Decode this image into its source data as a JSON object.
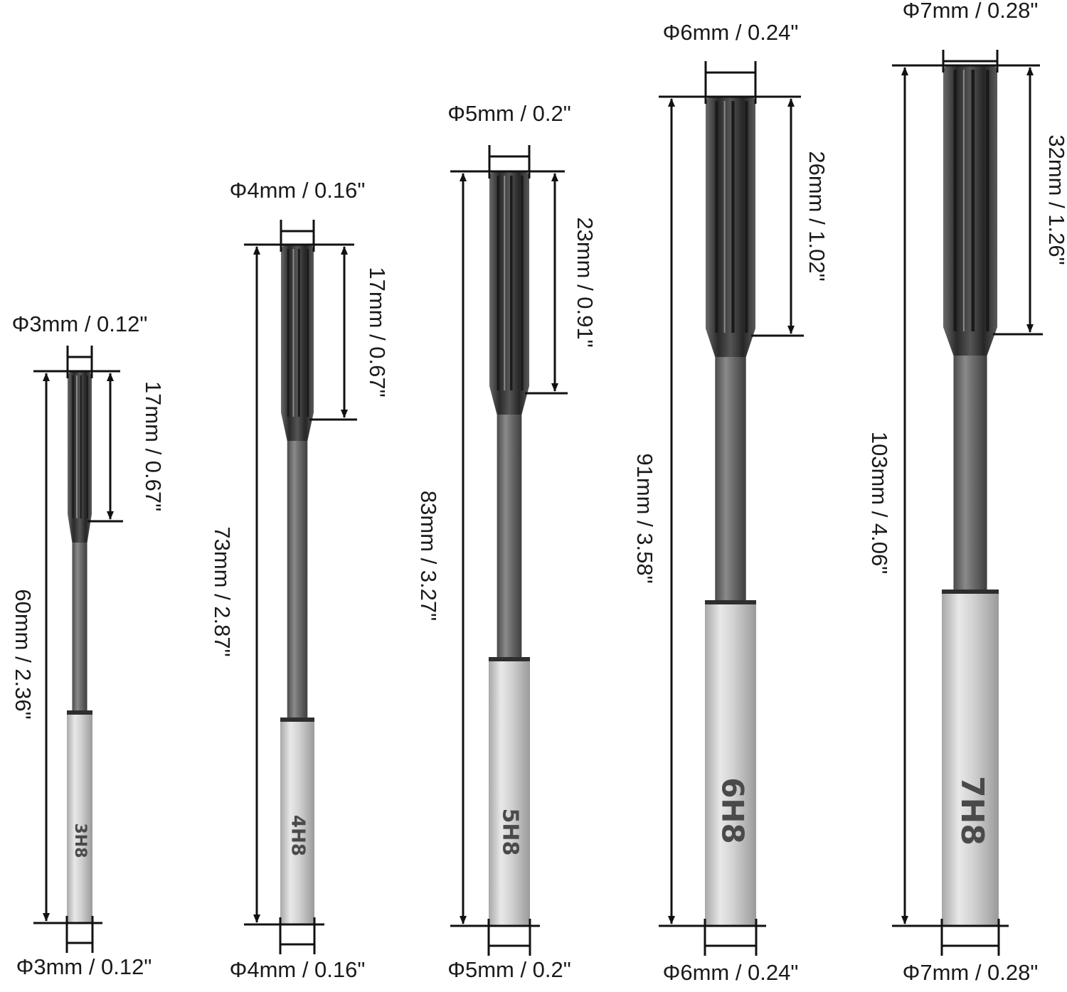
{
  "reamers": [
    {
      "top_diameter": "Φ3mm / 0.12\"",
      "bottom_diameter": "Φ3mm / 0.12\"",
      "flute_length": "17mm / 0.67\"",
      "total_length": "60mm / 2.36\"",
      "shank_marking": "3H8"
    },
    {
      "top_diameter": "Φ4mm / 0.16\"",
      "bottom_diameter": "Φ4mm / 0.16\"",
      "flute_length": "17mm / 0.67\"",
      "total_length": "73mm / 2.87\"",
      "shank_marking": "4H8"
    },
    {
      "top_diameter": "Φ5mm / 0.2\"",
      "bottom_diameter": "Φ5mm / 0.2\"",
      "flute_length": "23mm / 0.91\"",
      "total_length": "83mm / 3.27\"",
      "shank_marking": "5H8"
    },
    {
      "top_diameter": "Φ6mm / 0.24\"",
      "bottom_diameter": "Φ6mm / 0.24\"",
      "flute_length": "26mm / 1.02\"",
      "total_length": "91mm / 3.58\"",
      "shank_marking": "6H8"
    },
    {
      "top_diameter": "Φ7mm / 0.28\"",
      "bottom_diameter": "Φ7mm / 0.28\"",
      "flute_length": "32mm / 1.26\"",
      "total_length": "103mm / 4.06\"",
      "shank_marking": "7H8"
    }
  ],
  "colors": {
    "flute": "#3a3a3a",
    "body": "#6e6e6e",
    "shank": "#d4d4d4",
    "dimension_line": "#111111"
  }
}
